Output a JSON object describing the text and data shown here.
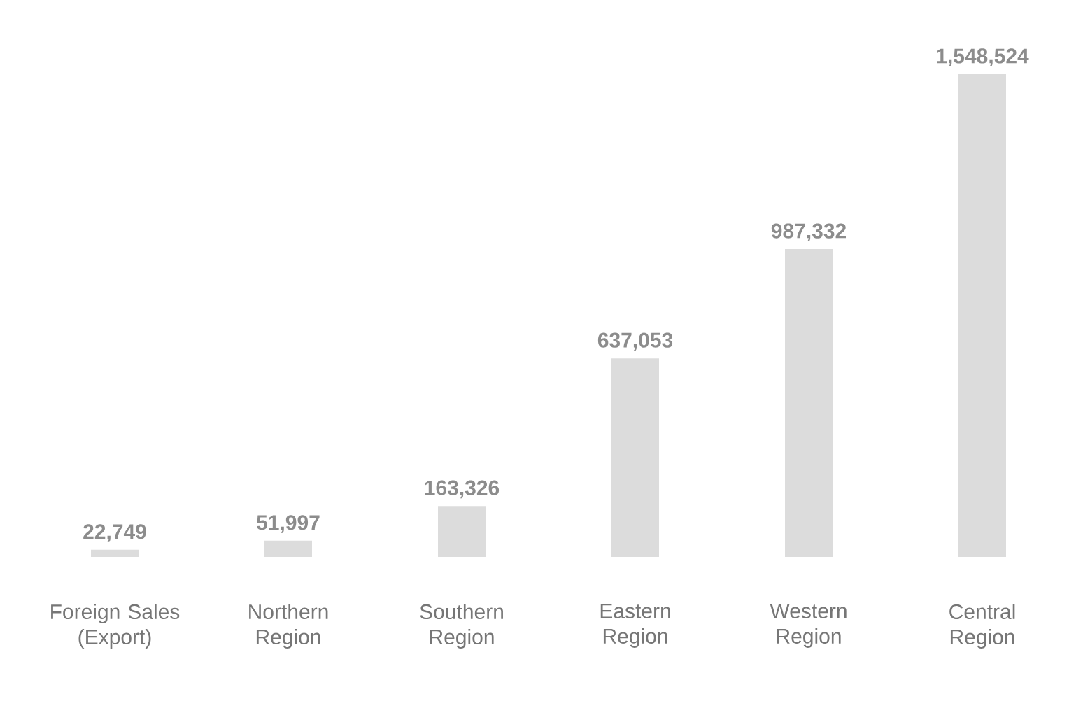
{
  "chart_data": {
    "type": "bar",
    "categories": [
      "Foreign Sales (Export)",
      "Northern Region",
      "Southern Region",
      "Eastern Region",
      "Western Region",
      "Central Region"
    ],
    "values": [
      22749,
      51997,
      163326,
      637053,
      987332,
      1548524
    ],
    "value_labels": [
      "22,749",
      "51,997",
      "163,326",
      "637,053",
      "987,332",
      "1,548,524"
    ],
    "color": "#dcdcdc",
    "ylim": [
      0,
      1548524
    ],
    "tick_labels": "x"
  }
}
